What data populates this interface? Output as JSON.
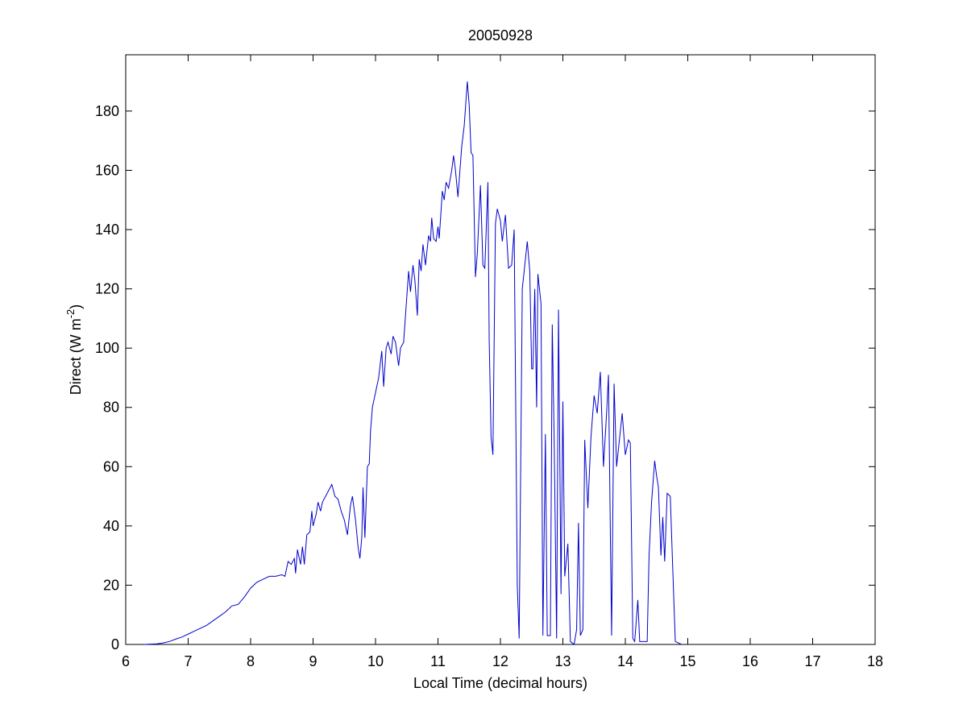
{
  "chart_data": {
    "type": "line",
    "title": "20050928",
    "xlabel": "Local Time (decimal hours)",
    "ylabel": [
      "Direct (W m",
      "-2",
      ")"
    ],
    "xlim": [
      6,
      18
    ],
    "xticks": [
      6,
      7,
      8,
      9,
      10,
      11,
      12,
      13,
      14,
      15,
      16,
      17,
      18
    ],
    "ylim": [
      0,
      199
    ],
    "yticks": [
      0,
      20,
      40,
      60,
      80,
      100,
      120,
      140,
      160,
      180
    ],
    "grid": false,
    "series": [
      {
        "color": "#0000cc",
        "x": [
          6.3,
          6.5,
          6.6,
          6.7,
          6.8,
          6.9,
          7.0,
          7.1,
          7.2,
          7.3,
          7.4,
          7.5,
          7.6,
          7.7,
          7.8,
          7.9,
          8.0,
          8.1,
          8.2,
          8.3,
          8.4,
          8.5,
          8.55,
          8.6,
          8.65,
          8.7,
          8.72,
          8.75,
          8.8,
          8.83,
          8.86,
          8.9,
          8.95,
          8.98,
          9.0,
          9.05,
          9.08,
          9.12,
          9.15,
          9.2,
          9.25,
          9.3,
          9.35,
          9.4,
          9.45,
          9.5,
          9.55,
          9.6,
          9.63,
          9.68,
          9.72,
          9.75,
          9.78,
          9.8,
          9.83,
          9.87,
          9.9,
          9.92,
          9.95,
          9.98,
          10.0,
          10.05,
          10.1,
          10.13,
          10.17,
          10.2,
          10.25,
          10.28,
          10.32,
          10.37,
          10.4,
          10.45,
          10.5,
          10.53,
          10.56,
          10.6,
          10.63,
          10.67,
          10.7,
          10.73,
          10.76,
          10.8,
          10.85,
          10.88,
          10.9,
          10.93,
          10.97,
          11.0,
          11.02,
          11.07,
          11.1,
          11.13,
          11.17,
          11.22,
          11.25,
          11.28,
          11.32,
          11.38,
          11.42,
          11.47,
          11.5,
          11.53,
          11.56,
          11.6,
          11.63,
          11.68,
          11.72,
          11.75,
          11.8,
          11.82,
          11.85,
          11.88,
          11.92,
          11.95,
          12.0,
          12.03,
          12.08,
          12.13,
          12.18,
          12.22,
          12.27,
          12.3,
          12.35,
          12.4,
          12.43,
          12.47,
          12.5,
          12.52,
          12.55,
          12.58,
          12.6,
          12.65,
          12.68,
          12.72,
          12.75,
          12.8,
          12.83,
          12.86,
          12.9,
          12.93,
          12.97,
          13.0,
          13.03,
          13.08,
          13.12,
          13.18,
          13.22,
          13.25,
          13.28,
          13.32,
          13.35,
          13.4,
          13.45,
          13.5,
          13.55,
          13.6,
          13.65,
          13.7,
          13.73,
          13.78,
          13.82,
          13.86,
          13.9,
          13.95,
          14.0,
          14.05,
          14.08,
          14.12,
          14.15,
          14.2,
          14.23,
          14.28,
          14.35,
          14.38,
          14.42,
          14.47,
          14.5,
          14.53,
          14.57,
          14.6,
          14.63,
          14.67,
          14.72,
          14.76,
          14.8,
          14.85,
          14.9
        ],
        "values": [
          0,
          0.2,
          0.5,
          1,
          1.8,
          2.5,
          3.5,
          4.5,
          5.5,
          6.5,
          8,
          9.5,
          11,
          13,
          13.5,
          16,
          19,
          21,
          22,
          23,
          23,
          23.5,
          23,
          28,
          27,
          29,
          24,
          32,
          27,
          33,
          27,
          37,
          38,
          45,
          40,
          44,
          48,
          45,
          48,
          50,
          52,
          54,
          50,
          49,
          45,
          42,
          37,
          47,
          50,
          42,
          33,
          29,
          36,
          53,
          36,
          60,
          61,
          72,
          80,
          83,
          85,
          90,
          99,
          87,
          100,
          102,
          98,
          104,
          102,
          94,
          100,
          102,
          117,
          126,
          119,
          128,
          123,
          111,
          130,
          126,
          135,
          128,
          138,
          136,
          144,
          137,
          136,
          141,
          137,
          153,
          150,
          156,
          154,
          160,
          165,
          160,
          151,
          168,
          175,
          190,
          182,
          166,
          165,
          124,
          132,
          155,
          128,
          127,
          156,
          103,
          70,
          64,
          142,
          147,
          143,
          136,
          145,
          127,
          128,
          140,
          20,
          2,
          120,
          130,
          136,
          126,
          93,
          93,
          120,
          80,
          125,
          115,
          3,
          71,
          3,
          3,
          108,
          70,
          2,
          113,
          17,
          82,
          23,
          34,
          1,
          0,
          5,
          41,
          3,
          5,
          69,
          46,
          70,
          84,
          78,
          92,
          60,
          78,
          91,
          3,
          88,
          60,
          68,
          78,
          64,
          69,
          68,
          2,
          1,
          15,
          1,
          1,
          1,
          30,
          48,
          62,
          57,
          53,
          30,
          43,
          28,
          51,
          50,
          25,
          1,
          0.5,
          0
        ]
      }
    ]
  }
}
